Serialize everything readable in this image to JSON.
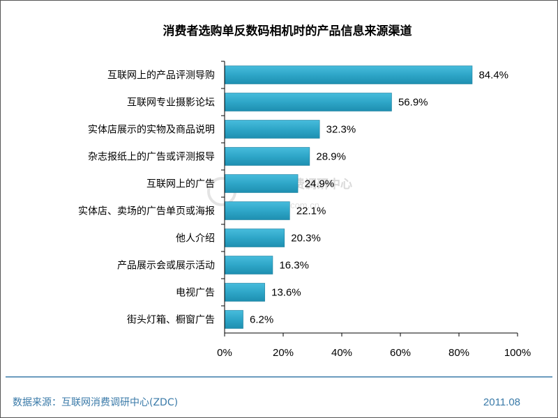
{
  "footer": {
    "source": "数据来源：互联网消费调研中心(ZDC)",
    "date": "2011.08"
  },
  "watermark": {
    "text": "互联网消费调研中心",
    "url": "zdc.zol.com.cn"
  },
  "colors": {
    "bar": "#2ea6c8",
    "bar_edge": "#1f7f9d",
    "axis": "#000000",
    "footer_text": "#3a7aa8",
    "separator": "#3a7aa8"
  },
  "chart_data": {
    "type": "bar",
    "orientation": "horizontal",
    "title": "消费者选购单反数码相机时的产品信息来源渠道",
    "xlabel": "",
    "ylabel": "",
    "categories": [
      "互联网上的产品评测导购",
      "互联网专业摄影论坛",
      "实体店展示的实物及商品说明",
      "杂志报纸上的广告或评测报导",
      "互联网上的广告",
      "实体店、卖场的广告单页或海报",
      "他人介绍",
      "产品展示会或展示活动",
      "电视广告",
      "街头灯箱、橱窗广告"
    ],
    "values": [
      84.4,
      56.9,
      32.3,
      28.9,
      24.9,
      22.1,
      20.3,
      16.3,
      13.6,
      6.2
    ],
    "value_labels": [
      "84.4%",
      "56.9%",
      "32.3%",
      "28.9%",
      "24.9%",
      "22.1%",
      "20.3%",
      "16.3%",
      "13.6%",
      "6.2%"
    ],
    "xlim": [
      0,
      100
    ],
    "x_ticks": [
      "0%",
      "20%",
      "40%",
      "60%",
      "80%",
      "100%"
    ],
    "grid": false,
    "legend": "none"
  }
}
